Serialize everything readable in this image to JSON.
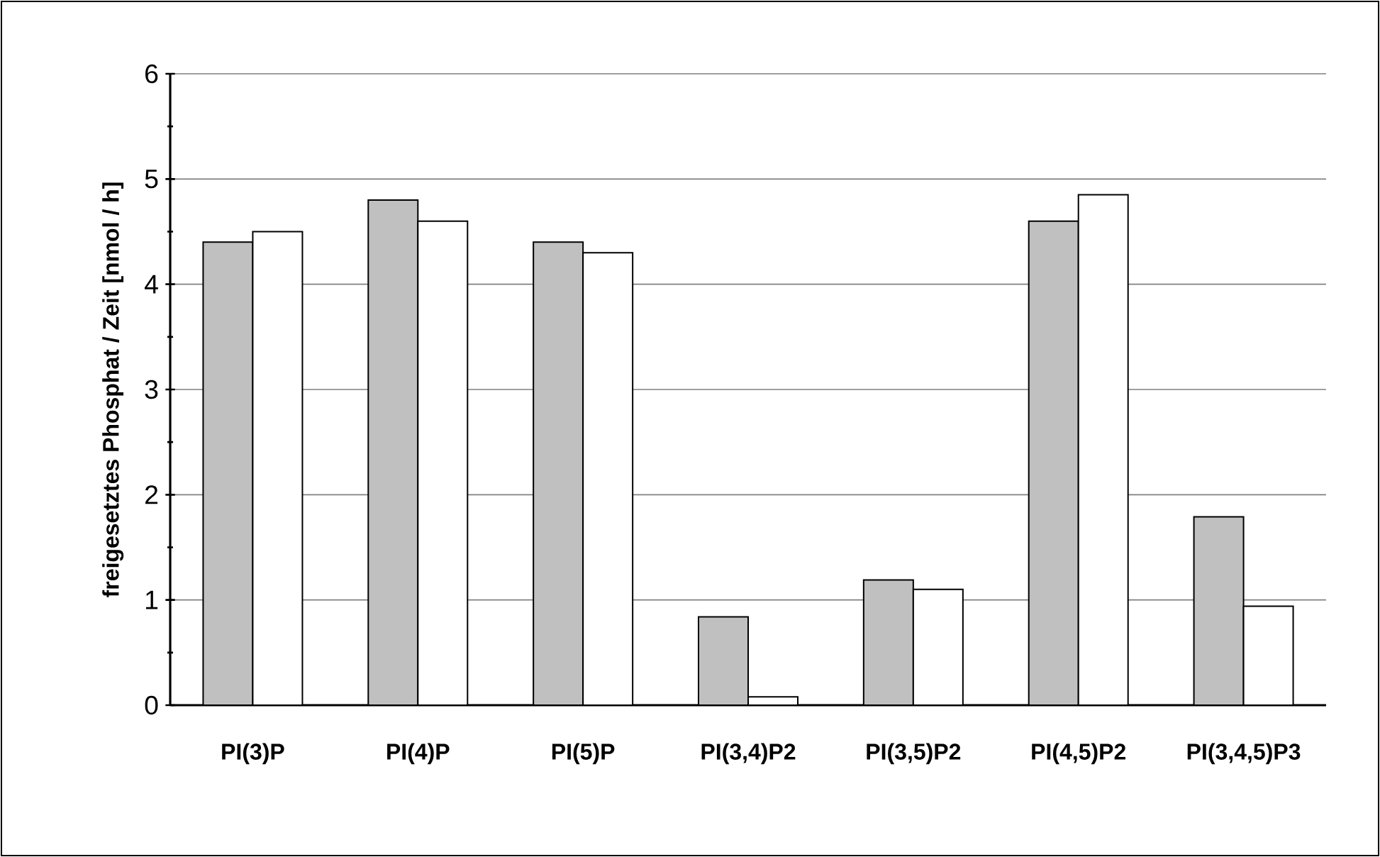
{
  "chart_data": {
    "type": "bar",
    "ylabel": "freigesetztes Phosphat / Zeit [nmol / h]",
    "categories": [
      "PI(3)P",
      "PI(4)P",
      "PI(5)P",
      "PI(3,4)P2",
      "PI(3,5)P2",
      "PI(4,5)P2",
      "PI(3,4,5)P3"
    ],
    "series": [
      {
        "color": "#c0c0c0",
        "values": [
          4.4,
          4.8,
          4.4,
          0.84,
          1.19,
          4.6,
          1.79
        ]
      },
      {
        "color": "#ffffff",
        "values": [
          4.5,
          4.6,
          4.3,
          0.08,
          1.1,
          4.85,
          0.94
        ]
      }
    ],
    "ylim": [
      0,
      6
    ],
    "yticks": [
      0,
      {
        "value": 0.5,
        "label": null
      },
      1,
      {
        "value": 1.5,
        "label": null
      },
      2,
      {
        "value": 2.5,
        "label": null
      },
      3,
      {
        "value": 3.5,
        "label": null
      },
      4,
      {
        "value": 4.5,
        "label": null
      },
      5,
      {
        "value": 5.5,
        "label": null
      },
      6
    ],
    "grid": "y"
  }
}
